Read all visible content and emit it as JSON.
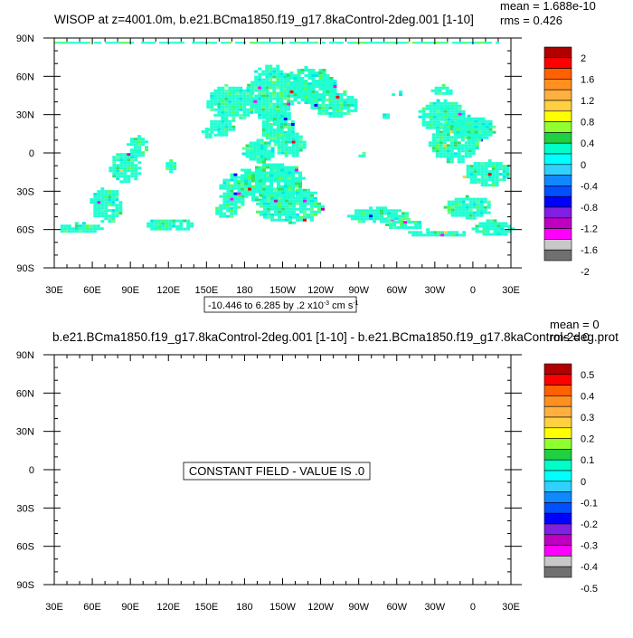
{
  "chart_data": [
    {
      "type": "heatmap",
      "title": "WISOP at z=4001.0m, b.e21.BCma1850.f19_g17.8kaControl-2deg.001 [1-10]",
      "stats": {
        "mean": "mean = 1.688e-10",
        "rms": "rms = 0.426"
      },
      "x_ticks": [
        "30E",
        "60E",
        "90E",
        "120E",
        "150E",
        "180",
        "150W",
        "120W",
        "90W",
        "60W",
        "30W",
        "0",
        "30E"
      ],
      "y_ticks": [
        "90N",
        "60N",
        "30N",
        "0",
        "30S",
        "60S",
        "90S"
      ],
      "xlim": [
        30,
        390
      ],
      "ylim": [
        -90,
        90
      ],
      "contour_info": "-10.446 to 6.285 by .2 x10",
      "contour_exp": "-3",
      "contour_units": " cm s",
      "contour_units_exp": "-1",
      "colorbar_labels": [
        "2",
        "1.6",
        "1.2",
        "0.8",
        "0.4",
        "0",
        "-0.4",
        "-0.8",
        "-1.2",
        "-1.6",
        "-2"
      ],
      "colorbar_colors": [
        "#b00000",
        "#ff0000",
        "#ff6000",
        "#ff9020",
        "#ffb040",
        "#ffd040",
        "#ffff00",
        "#90ff30",
        "#20d040",
        "#00ffc8",
        "#00ffff",
        "#30d0ff",
        "#1088ff",
        "#0050ff",
        "#0000ff",
        "#8020e0",
        "#c000c0",
        "#ff00ff",
        "#c8c8c8",
        "#707070"
      ],
      "field_color": "#20ffd0",
      "field_noise_colors": [
        "#50ff50",
        "#30e060",
        "#00e8e8",
        "#60ff90"
      ]
    },
    {
      "type": "heatmap",
      "title": "b.e21.BCma1850.f19_g17.8kaControl-2deg.001 [1-10] - b.e21.BCma1850.f19_g17.8kaControl-2deg.prot",
      "stats": {
        "mean": "mean = 0",
        "rms": "rms = 0"
      },
      "x_ticks": [
        "30E",
        "60E",
        "90E",
        "120E",
        "150E",
        "180",
        "150W",
        "120W",
        "90W",
        "60W",
        "30W",
        "0",
        "30E"
      ],
      "y_ticks": [
        "90N",
        "60N",
        "30N",
        "0",
        "30S",
        "60S",
        "90S"
      ],
      "xlim": [
        30,
        390
      ],
      "ylim": [
        -90,
        90
      ],
      "constant_label": "CONSTANT FIELD - VALUE IS .0",
      "colorbar_labels": [
        "0.5",
        "0.4",
        "0.3",
        "0.2",
        "0.1",
        "0",
        "-0.1",
        "-0.2",
        "-0.3",
        "-0.4",
        "-0.5"
      ],
      "colorbar_colors": [
        "#b00000",
        "#ff0000",
        "#ff6000",
        "#ff9020",
        "#ffb040",
        "#ffd040",
        "#ffff00",
        "#90ff30",
        "#20d040",
        "#00ffc8",
        "#00ffff",
        "#30d0ff",
        "#1088ff",
        "#0050ff",
        "#0000ff",
        "#8020e0",
        "#c000c0",
        "#ff00ff",
        "#c8c8c8",
        "#707070"
      ]
    }
  ]
}
